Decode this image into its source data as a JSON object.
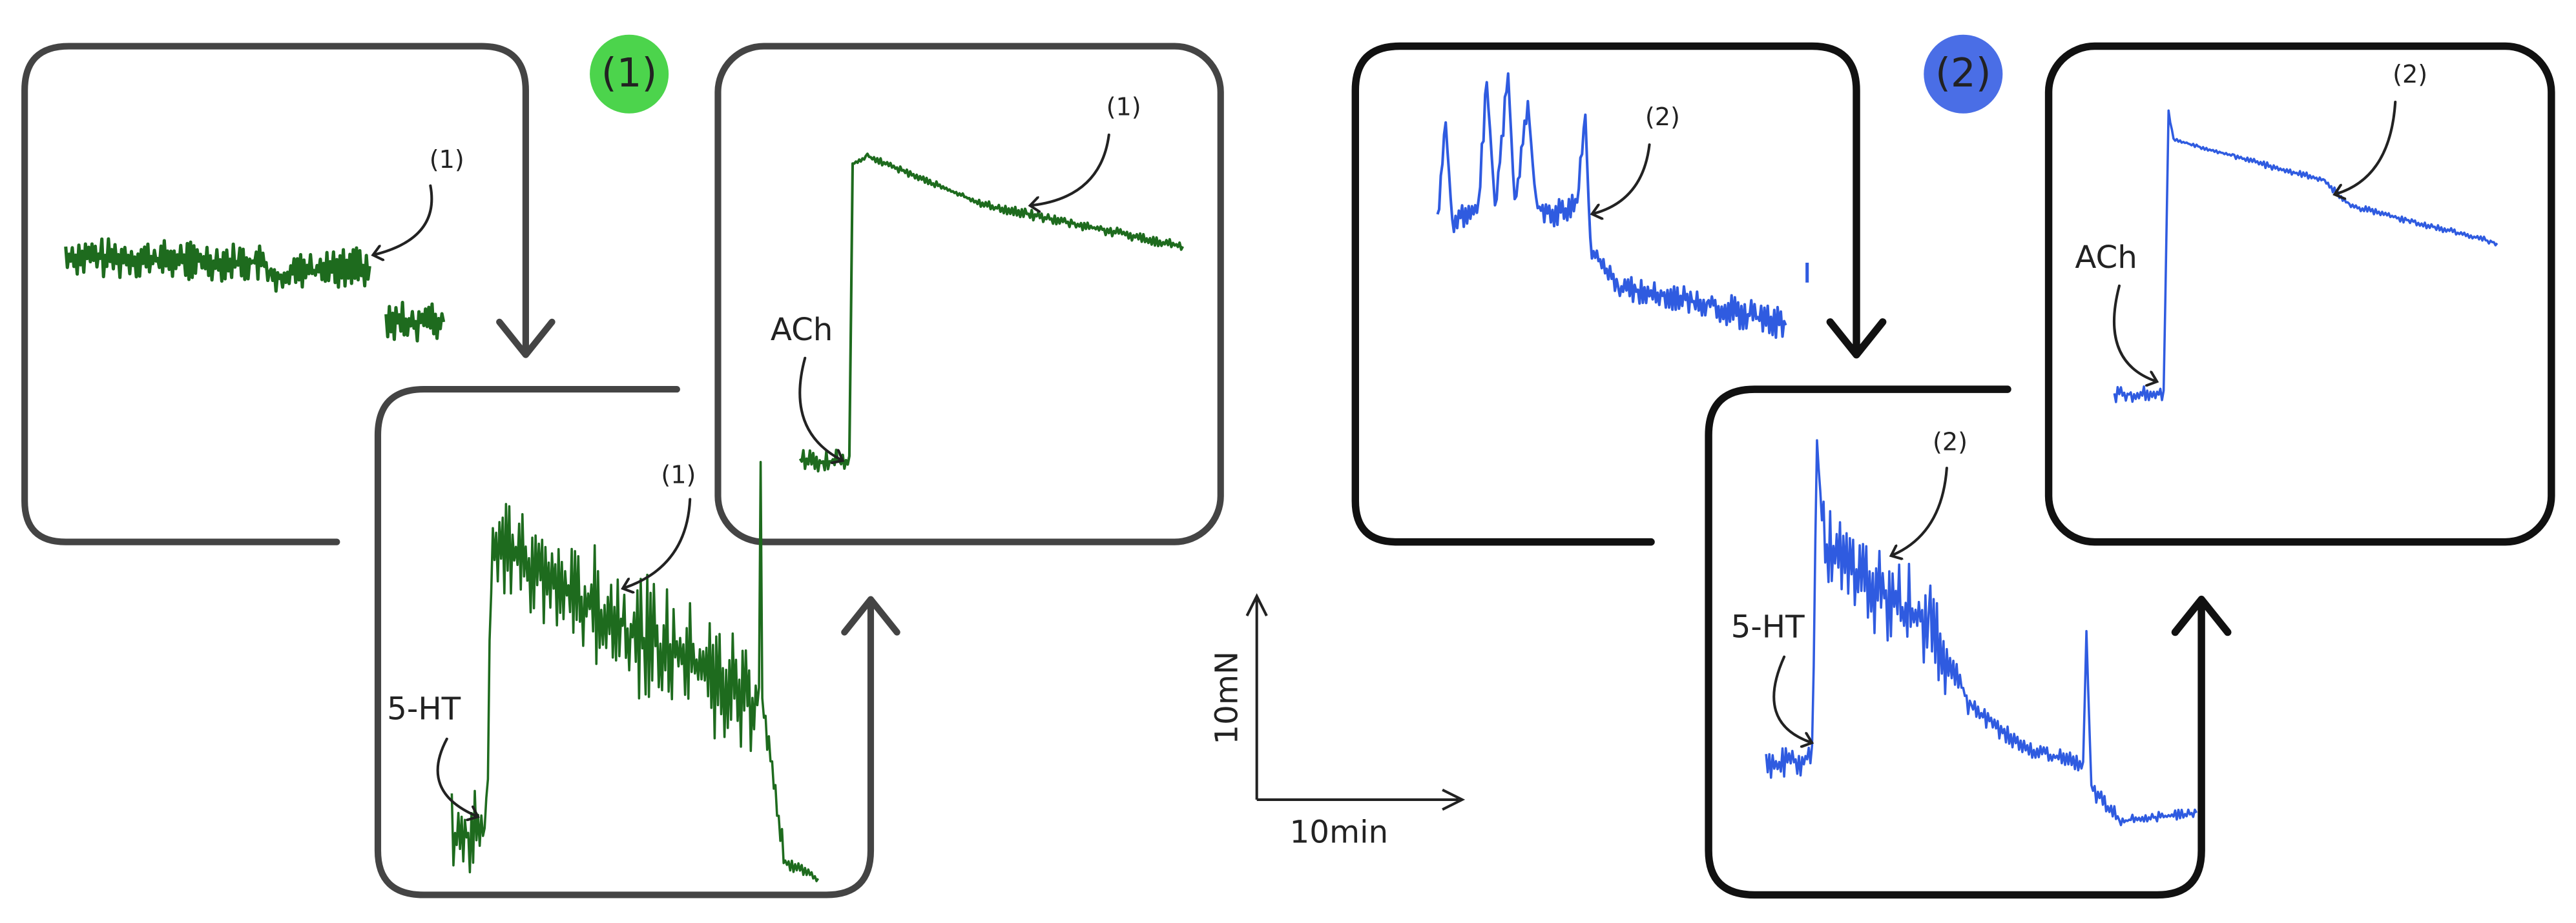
{
  "groups": [
    {
      "badge": "(1)",
      "panels": [
        {
          "marker": "(1)"
        },
        {
          "marker": "(1)",
          "agonist": "5-HT"
        },
        {
          "marker": "(1)",
          "agonist": "ACh"
        }
      ]
    },
    {
      "badge": "(2)",
      "panels": [
        {
          "marker": "(2)"
        },
        {
          "marker": "(2)",
          "agonist": "5-HT"
        },
        {
          "marker": "(2)",
          "agonist": "ACh"
        }
      ]
    }
  ],
  "scale_bar": {
    "y_label": "10mN",
    "x_label": "10min"
  }
}
